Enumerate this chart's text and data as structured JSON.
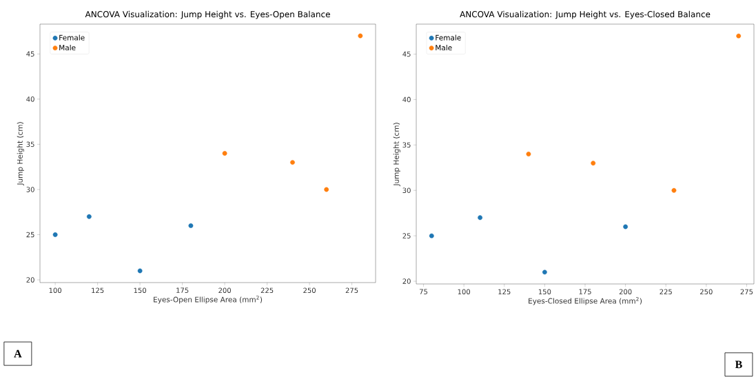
{
  "chart_data": [
    {
      "type": "scatter",
      "title": "ANCOVA Visualization: Jump Height vs. Eyes-Open Balance",
      "xlabel": "Eyes-Open Ellipse Area (mm$^{2}$)",
      "ylabel": "Jump Height (cm)",
      "series": [
        {
          "name": "Female",
          "color": "#1f77b4",
          "x": [
            100,
            120,
            150,
            180
          ],
          "values": [
            25,
            27,
            21,
            26
          ]
        },
        {
          "name": "Male",
          "color": "#ff7f0e",
          "x": [
            200,
            240,
            260,
            280
          ],
          "values": [
            34,
            33,
            30,
            47
          ]
        }
      ],
      "xlim": [
        91,
        289
      ],
      "ylim": [
        19.7,
        48.3
      ],
      "xticks": [
        100,
        125,
        150,
        175,
        200,
        225,
        250,
        275
      ],
      "yticks": [
        20,
        25,
        30,
        35,
        40,
        45
      ],
      "legend": "top left",
      "marker": "circle",
      "annotations": [
        "A"
      ]
    },
    {
      "type": "scatter",
      "title": "ANCOVA Visualization: Jump Height vs. Eyes-Closed Balance",
      "xlabel": "Eyes-Closed Ellipse Area (mm$^{2}$)",
      "ylabel": "Jump Height (cm)",
      "series": [
        {
          "name": "Female",
          "color": "#1f77b4",
          "x": [
            80,
            110,
            150,
            200
          ],
          "values": [
            25,
            27,
            21,
            26
          ]
        },
        {
          "name": "Male",
          "color": "#ff7f0e",
          "x": [
            140,
            180,
            230,
            270
          ],
          "values": [
            34,
            33,
            30,
            47
          ]
        }
      ],
      "xlim": [
        70.5,
        279.5
      ],
      "ylim": [
        19.7,
        48.3
      ],
      "xticks": [
        75,
        100,
        125,
        150,
        175,
        200,
        225,
        250,
        275
      ],
      "yticks": [
        20,
        25,
        30,
        35,
        40,
        45
      ],
      "legend": "top left",
      "marker": "circle",
      "annotations": [
        "B"
      ]
    }
  ]
}
